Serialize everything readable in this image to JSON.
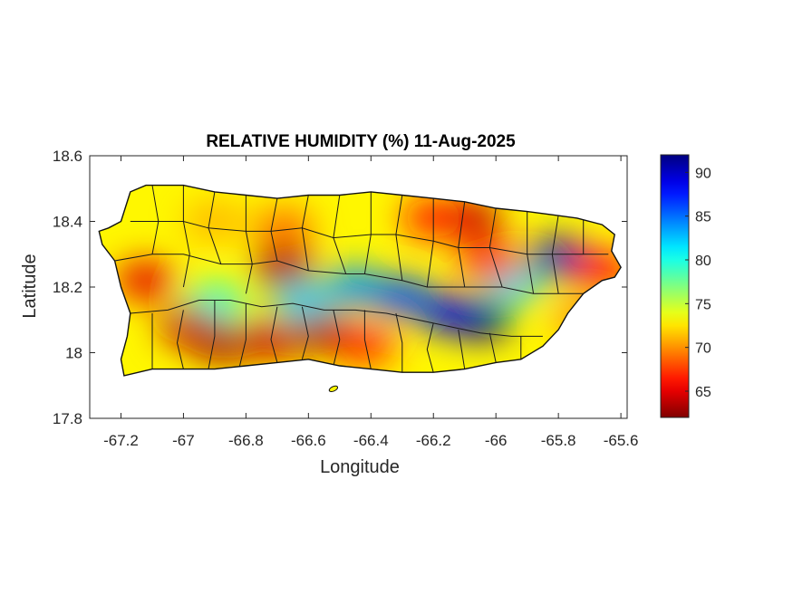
{
  "chart_data": {
    "type": "heatmap",
    "title": "RELATIVE HUMIDITY (%) 11-Aug-2025",
    "xlabel": "Longitude",
    "ylabel": "Latitude",
    "xlim": [
      -67.3,
      -65.58
    ],
    "ylim": [
      17.8,
      18.6
    ],
    "x_ticks": [
      -67.2,
      -67,
      -66.8,
      -66.6,
      -66.4,
      -66.2,
      -66,
      -65.8,
      -65.6
    ],
    "x_tick_labels": [
      "-67.2",
      "-67",
      "-66.8",
      "-66.6",
      "-66.4",
      "-66.2",
      "-66",
      "-65.8",
      "-65.6"
    ],
    "y_ticks": [
      17.8,
      18,
      18.2,
      18.4,
      18.6
    ],
    "y_tick_labels": [
      "17.8",
      "18",
      "18.2",
      "18.4",
      "18.6"
    ],
    "colorbar": {
      "range": [
        62,
        92
      ],
      "ticks": [
        65,
        70,
        75,
        80,
        85,
        90
      ],
      "tick_labels": [
        "65",
        "70",
        "75",
        "80",
        "85",
        "90"
      ],
      "colormap": "jet"
    },
    "background_value": 73,
    "island_outline": [
      [
        -67.27,
        18.37
      ],
      [
        -67.24,
        18.38
      ],
      [
        -67.2,
        18.4
      ],
      [
        -67.17,
        18.49
      ],
      [
        -67.12,
        18.51
      ],
      [
        -67.0,
        18.51
      ],
      [
        -66.9,
        18.49
      ],
      [
        -66.8,
        18.48
      ],
      [
        -66.7,
        18.47
      ],
      [
        -66.6,
        18.48
      ],
      [
        -66.5,
        18.48
      ],
      [
        -66.4,
        18.49
      ],
      [
        -66.3,
        18.48
      ],
      [
        -66.2,
        18.47
      ],
      [
        -66.1,
        18.46
      ],
      [
        -66.0,
        18.44
      ],
      [
        -65.9,
        18.43
      ],
      [
        -65.82,
        18.42
      ],
      [
        -65.74,
        18.41
      ],
      [
        -65.66,
        18.39
      ],
      [
        -65.62,
        18.36
      ],
      [
        -65.63,
        18.31
      ],
      [
        -65.6,
        18.26
      ],
      [
        -65.62,
        18.23
      ],
      [
        -65.66,
        18.22
      ],
      [
        -65.72,
        18.18
      ],
      [
        -65.77,
        18.12
      ],
      [
        -65.8,
        18.07
      ],
      [
        -65.85,
        18.02
      ],
      [
        -65.92,
        17.98
      ],
      [
        -66.0,
        17.97
      ],
      [
        -66.1,
        17.95
      ],
      [
        -66.2,
        17.94
      ],
      [
        -66.3,
        17.94
      ],
      [
        -66.4,
        17.95
      ],
      [
        -66.5,
        17.96
      ],
      [
        -66.6,
        17.98
      ],
      [
        -66.7,
        17.97
      ],
      [
        -66.8,
        17.96
      ],
      [
        -66.9,
        17.95
      ],
      [
        -67.0,
        17.95
      ],
      [
        -67.1,
        17.95
      ],
      [
        -67.19,
        17.93
      ],
      [
        -67.2,
        17.98
      ],
      [
        -67.18,
        18.05
      ],
      [
        -67.17,
        18.12
      ],
      [
        -67.2,
        18.2
      ],
      [
        -67.22,
        18.28
      ],
      [
        -67.26,
        18.33
      ]
    ],
    "humidity_features": [
      {
        "lon": -66.05,
        "lat": 18.1,
        "value": 92
      },
      {
        "lon": -66.15,
        "lat": 18.12,
        "value": 89
      },
      {
        "lon": -65.8,
        "lat": 18.29,
        "value": 90
      },
      {
        "lon": -66.45,
        "lat": 18.2,
        "value": 84
      },
      {
        "lon": -66.62,
        "lat": 18.16,
        "value": 82
      },
      {
        "lon": -66.3,
        "lat": 18.17,
        "value": 86
      },
      {
        "lon": -65.95,
        "lat": 18.21,
        "value": 82
      },
      {
        "lon": -66.9,
        "lat": 18.15,
        "value": 80
      },
      {
        "lon": -66.88,
        "lat": 18.03,
        "value": 63
      },
      {
        "lon": -66.72,
        "lat": 18.04,
        "value": 64
      },
      {
        "lon": -66.55,
        "lat": 18.06,
        "value": 63
      },
      {
        "lon": -66.98,
        "lat": 18.08,
        "value": 64
      },
      {
        "lon": -66.68,
        "lat": 18.26,
        "value": 63
      },
      {
        "lon": -66.08,
        "lat": 18.41,
        "value": 64
      },
      {
        "lon": -66.2,
        "lat": 18.41,
        "value": 66
      },
      {
        "lon": -67.12,
        "lat": 18.22,
        "value": 65
      },
      {
        "lon": -66.02,
        "lat": 18.28,
        "value": 66
      },
      {
        "lon": -65.66,
        "lat": 18.25,
        "value": 66
      },
      {
        "lon": -66.42,
        "lat": 18.02,
        "value": 67
      },
      {
        "lon": -66.68,
        "lat": 18.38,
        "value": 69
      },
      {
        "lon": -66.9,
        "lat": 18.4,
        "value": 71
      },
      {
        "lon": -65.72,
        "lat": 18.1,
        "value": 70
      }
    ],
    "municipality_lines": [
      [
        [
          -67.1,
          18.51
        ],
        [
          -67.08,
          18.4
        ],
        [
          -67.1,
          18.3
        ]
      ],
      [
        [
          -67.0,
          18.51
        ],
        [
          -67.0,
          18.4
        ],
        [
          -66.98,
          18.3
        ],
        [
          -67.0,
          18.2
        ]
      ],
      [
        [
          -66.9,
          18.49
        ],
        [
          -66.92,
          18.38
        ],
        [
          -66.88,
          18.27
        ]
      ],
      [
        [
          -66.8,
          18.48
        ],
        [
          -66.8,
          18.37
        ],
        [
          -66.78,
          18.27
        ],
        [
          -66.8,
          18.18
        ]
      ],
      [
        [
          -66.7,
          18.47
        ],
        [
          -66.72,
          18.37
        ],
        [
          -66.7,
          18.28
        ]
      ],
      [
        [
          -66.6,
          18.48
        ],
        [
          -66.62,
          18.38
        ],
        [
          -66.6,
          18.25
        ]
      ],
      [
        [
          -66.5,
          18.48
        ],
        [
          -66.52,
          18.35
        ],
        [
          -66.48,
          18.24
        ]
      ],
      [
        [
          -66.4,
          18.49
        ],
        [
          -66.4,
          18.36
        ],
        [
          -66.42,
          18.24
        ]
      ],
      [
        [
          -66.3,
          18.48
        ],
        [
          -66.32,
          18.36
        ],
        [
          -66.3,
          18.22
        ]
      ],
      [
        [
          -66.2,
          18.47
        ],
        [
          -66.2,
          18.34
        ],
        [
          -66.22,
          18.2
        ]
      ],
      [
        [
          -66.1,
          18.46
        ],
        [
          -66.12,
          18.32
        ],
        [
          -66.1,
          18.2
        ]
      ],
      [
        [
          -66.0,
          18.44
        ],
        [
          -66.02,
          18.32
        ],
        [
          -65.98,
          18.2
        ]
      ],
      [
        [
          -65.9,
          18.43
        ],
        [
          -65.9,
          18.3
        ],
        [
          -65.88,
          18.18
        ]
      ],
      [
        [
          -65.8,
          18.42
        ],
        [
          -65.82,
          18.3
        ],
        [
          -65.8,
          18.18
        ]
      ],
      [
        [
          -65.72,
          18.41
        ],
        [
          -65.72,
          18.3
        ]
      ],
      [
        [
          -67.22,
          18.28
        ],
        [
          -67.1,
          18.3
        ],
        [
          -67.0,
          18.3
        ],
        [
          -66.88,
          18.27
        ],
        [
          -66.78,
          18.27
        ],
        [
          -66.7,
          18.28
        ],
        [
          -66.6,
          18.25
        ],
        [
          -66.48,
          18.24
        ],
        [
          -66.42,
          18.24
        ],
        [
          -66.3,
          18.22
        ],
        [
          -66.22,
          18.2
        ],
        [
          -66.1,
          18.2
        ],
        [
          -65.98,
          18.2
        ],
        [
          -65.88,
          18.18
        ],
        [
          -65.8,
          18.18
        ],
        [
          -65.72,
          18.18
        ]
      ],
      [
        [
          -67.17,
          18.12
        ],
        [
          -67.05,
          18.13
        ],
        [
          -66.95,
          18.16
        ],
        [
          -66.85,
          18.16
        ],
        [
          -66.75,
          18.14
        ],
        [
          -66.65,
          18.15
        ],
        [
          -66.55,
          18.13
        ],
        [
          -66.45,
          18.13
        ],
        [
          -66.35,
          18.12
        ],
        [
          -66.25,
          18.1
        ],
        [
          -66.15,
          18.08
        ],
        [
          -66.05,
          18.06
        ],
        [
          -65.95,
          18.05
        ],
        [
          -65.85,
          18.05
        ]
      ],
      [
        [
          -67.1,
          18.12
        ],
        [
          -67.1,
          17.95
        ]
      ],
      [
        [
          -67.0,
          18.13
        ],
        [
          -67.02,
          18.03
        ],
        [
          -67.0,
          17.95
        ]
      ],
      [
        [
          -66.9,
          18.16
        ],
        [
          -66.9,
          18.05
        ],
        [
          -66.92,
          17.95
        ]
      ],
      [
        [
          -66.8,
          18.15
        ],
        [
          -66.8,
          18.04
        ],
        [
          -66.82,
          17.96
        ]
      ],
      [
        [
          -66.7,
          18.14
        ],
        [
          -66.72,
          18.04
        ],
        [
          -66.7,
          17.97
        ]
      ],
      [
        [
          -66.62,
          18.14
        ],
        [
          -66.6,
          18.05
        ],
        [
          -66.62,
          17.98
        ]
      ],
      [
        [
          -66.52,
          18.13
        ],
        [
          -66.5,
          18.04
        ],
        [
          -66.52,
          17.96
        ]
      ],
      [
        [
          -66.42,
          18.13
        ],
        [
          -66.42,
          18.04
        ],
        [
          -66.4,
          17.95
        ]
      ],
      [
        [
          -66.32,
          18.12
        ],
        [
          -66.3,
          18.03
        ],
        [
          -66.3,
          17.94
        ]
      ],
      [
        [
          -66.2,
          18.09
        ],
        [
          -66.22,
          18.01
        ],
        [
          -66.2,
          17.94
        ]
      ],
      [
        [
          -66.12,
          18.07
        ],
        [
          -66.1,
          17.95
        ]
      ],
      [
        [
          -66.02,
          18.06
        ],
        [
          -66.0,
          17.97
        ]
      ],
      [
        [
          -65.92,
          18.05
        ],
        [
          -65.92,
          17.98
        ]
      ],
      [
        [
          -67.17,
          18.4
        ],
        [
          -67.08,
          18.4
        ],
        [
          -67.0,
          18.4
        ],
        [
          -66.92,
          18.38
        ],
        [
          -66.8,
          18.37
        ],
        [
          -66.72,
          18.37
        ],
        [
          -66.62,
          18.38
        ],
        [
          -66.52,
          18.35
        ],
        [
          -66.4,
          18.36
        ],
        [
          -66.32,
          18.36
        ],
        [
          -66.2,
          18.34
        ],
        [
          -66.12,
          18.32
        ],
        [
          -66.02,
          18.32
        ],
        [
          -65.9,
          18.3
        ],
        [
          -65.82,
          18.3
        ],
        [
          -65.72,
          18.3
        ],
        [
          -65.64,
          18.3
        ]
      ]
    ],
    "small_islands": [
      {
        "lon": -66.52,
        "lat": 17.89
      }
    ]
  }
}
